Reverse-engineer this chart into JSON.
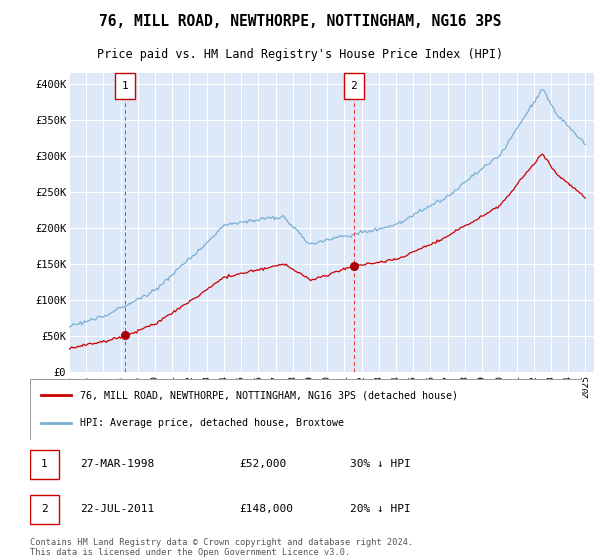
{
  "title": "76, MILL ROAD, NEWTHORPE, NOTTINGHAM, NG16 3PS",
  "subtitle": "Price paid vs. HM Land Registry's House Price Index (HPI)",
  "ylabel_ticks": [
    "£0",
    "£50K",
    "£100K",
    "£150K",
    "£200K",
    "£250K",
    "£300K",
    "£350K",
    "£400K"
  ],
  "ytick_vals": [
    0,
    50000,
    100000,
    150000,
    200000,
    250000,
    300000,
    350000,
    400000
  ],
  "ylim": [
    0,
    415000
  ],
  "xlim_start": 1995.0,
  "xlim_end": 2025.5,
  "bg_color": "#dde8f8",
  "grid_color": "#ffffff",
  "sale1_x": 1998.23,
  "sale1_y": 52000,
  "sale1_label": "27-MAR-1998",
  "sale1_price": "£52,000",
  "sale1_hpi": "30% ↓ HPI",
  "sale2_x": 2011.55,
  "sale2_y": 148000,
  "sale2_label": "22-JUL-2011",
  "sale2_price": "£148,000",
  "sale2_hpi": "20% ↓ HPI",
  "legend_line1": "76, MILL ROAD, NEWTHORPE, NOTTINGHAM, NG16 3PS (detached house)",
  "legend_line2": "HPI: Average price, detached house, Broxtowe",
  "footer": "Contains HM Land Registry data © Crown copyright and database right 2024.\nThis data is licensed under the Open Government Licence v3.0.",
  "line_red": "#cc0000",
  "line_blue": "#7bafd4",
  "marker_color": "#aa0000"
}
